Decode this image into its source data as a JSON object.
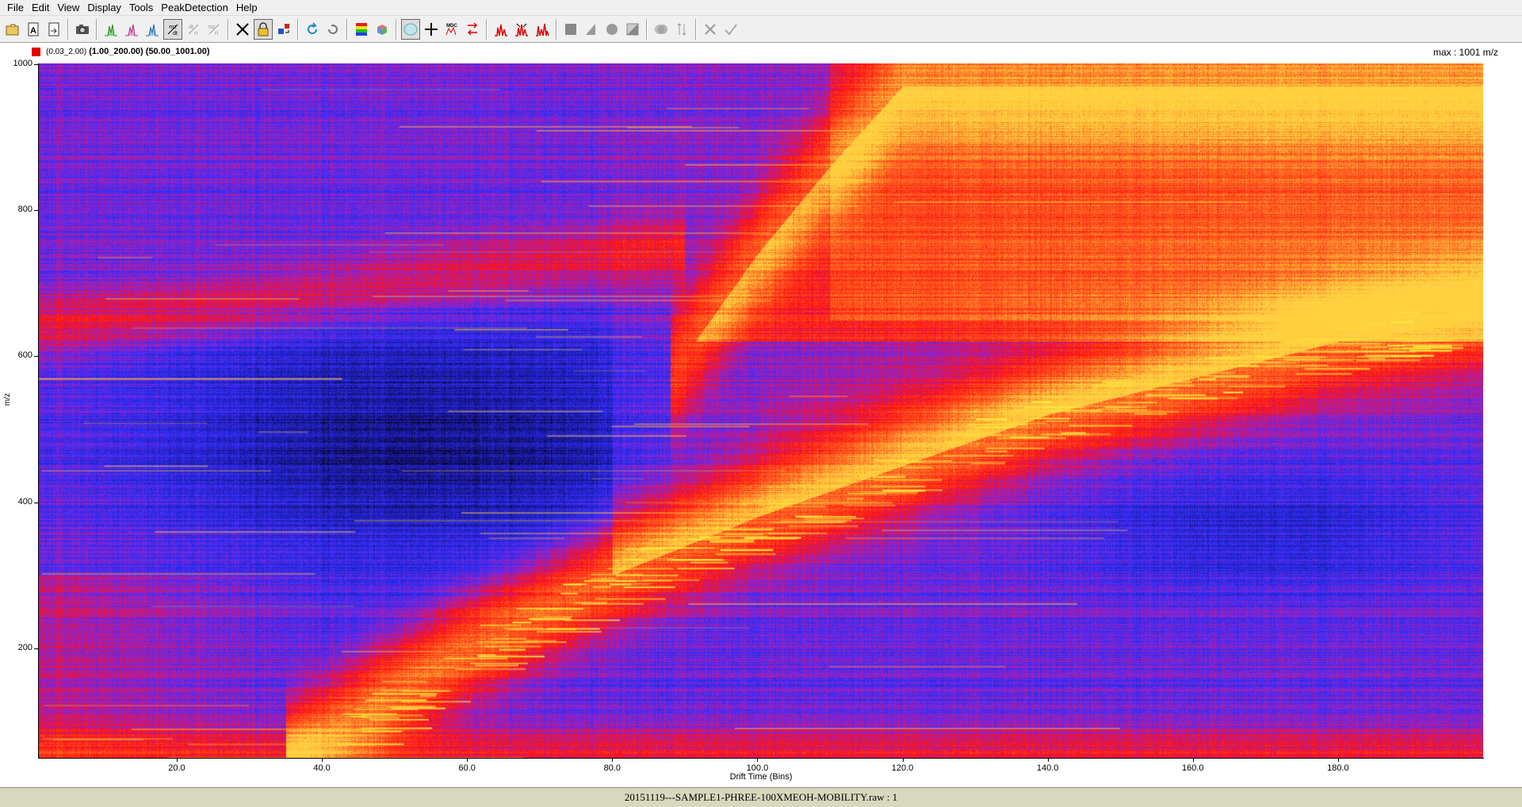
{
  "menu": [
    "File",
    "Edit",
    "View",
    "Display",
    "Tools",
    "PeakDetection",
    "Help"
  ],
  "toolbar": [
    {
      "icon": "open-folder-icon"
    },
    {
      "icon": "document-a-icon"
    },
    {
      "icon": "export-icon"
    },
    {
      "sep": true
    },
    {
      "icon": "camera-icon"
    },
    {
      "sep": true
    },
    {
      "icon": "spectrum-green-icon"
    },
    {
      "icon": "spectrum-pink-icon"
    },
    {
      "icon": "spectrum-blue-icon"
    },
    {
      "icon": "mz-dt-icon",
      "pressed": true
    },
    {
      "icon": "dt-rt-icon",
      "disabled": true
    },
    {
      "icon": "mz-rt-icon",
      "disabled": true
    },
    {
      "sep": true
    },
    {
      "icon": "crosshair-x-icon"
    },
    {
      "icon": "lock-icon",
      "pressed": true
    },
    {
      "icon": "swap-icon"
    },
    {
      "sep": true
    },
    {
      "icon": "refresh-icon"
    },
    {
      "icon": "undo-icon"
    },
    {
      "sep": true
    },
    {
      "icon": "color-palette-icon"
    },
    {
      "icon": "cube-icon"
    },
    {
      "sep": true
    },
    {
      "icon": "lens-icon",
      "pressed": true
    },
    {
      "icon": "crosshair-plus-icon"
    },
    {
      "icon": "mdc-icon"
    },
    {
      "icon": "arrows-icon"
    },
    {
      "sep": true
    },
    {
      "icon": "peaks-icon"
    },
    {
      "icon": "peaks-split-icon"
    },
    {
      "icon": "peaks-multi-icon"
    },
    {
      "sep": true
    },
    {
      "icon": "square-gray-icon"
    },
    {
      "icon": "triangle-gray-icon"
    },
    {
      "icon": "circle-gray-icon"
    },
    {
      "icon": "half-square-gray-icon"
    },
    {
      "sep": true
    },
    {
      "icon": "overlap-circles-icon"
    },
    {
      "icon": "updown-icon"
    },
    {
      "sep": true
    },
    {
      "icon": "cancel-icon"
    },
    {
      "icon": "check-icon"
    }
  ],
  "legend": {
    "color": "#e00000",
    "range1": "(0.03_2.00)",
    "range2": "(1.00_200.00)",
    "range3": "(50.00_1001.00)"
  },
  "max_label": "max : 1001 m/z",
  "axes": {
    "x_title": "Drift Time (Bins)",
    "y_title": "m/z",
    "x_ticks": [
      "20.0",
      "40.0",
      "60.0",
      "80.0",
      "100.0",
      "120.0",
      "140.0",
      "160.0",
      "180.0"
    ],
    "y_ticks": [
      "200",
      "400",
      "600",
      "800",
      "1000"
    ]
  },
  "status": "20151119---SAMPLE1-PHREE-100XMEOH-MOBILITY.raw : 1",
  "chart_data": {
    "type": "heatmap",
    "title": "",
    "xlabel": "Drift Time (Bins)",
    "ylabel": "m/z",
    "xlim": [
      1,
      200
    ],
    "ylim": [
      50,
      1001
    ],
    "x_ticks": [
      20,
      40,
      60,
      80,
      100,
      120,
      140,
      160,
      180
    ],
    "y_ticks": [
      200,
      400,
      600,
      800,
      1000
    ],
    "colormap": [
      "#000000",
      "#1a1aa0",
      "#3030ff",
      "#a020c0",
      "#ff1010",
      "#ff6020",
      "#ffd040"
    ],
    "trends": [
      {
        "name": "",
        "points": [
          [
            40,
            80
          ],
          [
            60,
            200
          ],
          [
            80,
            300
          ],
          [
            100,
            380
          ],
          [
            120,
            450
          ],
          [
            140,
            520
          ],
          [
            160,
            570
          ],
          [
            180,
            620
          ],
          [
            200,
            650
          ]
        ]
      },
      {
        "name": "",
        "points": [
          [
            90,
            600
          ],
          [
            100,
            740
          ],
          [
            110,
            860
          ],
          [
            120,
            970
          ]
        ]
      }
    ]
  }
}
